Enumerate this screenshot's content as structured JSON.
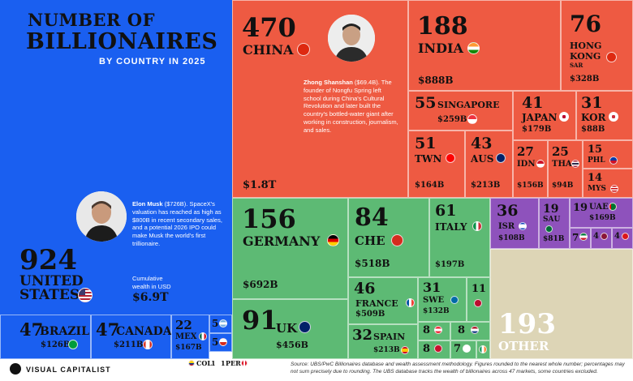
{
  "header": {
    "title_line1": "NUMBER OF",
    "title_line2": "BILLIONAIRES",
    "subtitle": "BY COUNTRY IN 2025"
  },
  "colors": {
    "us_blue": "#1a5ff0",
    "asia_red": "#ee5a42",
    "europe_green": "#5dba74",
    "mideast_purple": "#8e52bc",
    "other_beige": "#ddd5b6"
  },
  "chart_data": {
    "type": "treemap",
    "title": "Number of Billionaires by Country in 2025",
    "entries": [
      {
        "country": "United States",
        "count": 924,
        "wealth": "$6.9T",
        "wealth_label": "Cumulative wealth in USD"
      },
      {
        "country": "China",
        "count": 470,
        "wealth": "$1.8T"
      },
      {
        "country": "India",
        "count": 188,
        "wealth": "$888B"
      },
      {
        "country": "Hong Kong SAR",
        "count": 76,
        "wealth": "$328B"
      },
      {
        "country": "Singapore",
        "count": 55,
        "wealth": "$259B"
      },
      {
        "country": "Japan",
        "count": 41,
        "wealth": "$179B"
      },
      {
        "country": "Korea",
        "count": 31,
        "wealth": "$88B"
      },
      {
        "country": "Taiwan",
        "count": 51,
        "wealth": "$164B"
      },
      {
        "country": "Australia",
        "count": 43,
        "wealth": "$213B"
      },
      {
        "country": "Indonesia",
        "count": 27,
        "wealth": "$156B"
      },
      {
        "country": "Thailand",
        "count": 25,
        "wealth": "$94B"
      },
      {
        "country": "Philippines",
        "count": 15
      },
      {
        "country": "Malaysia",
        "count": 14
      },
      {
        "country": "Brazil",
        "count": 47,
        "wealth": "$126B"
      },
      {
        "country": "Canada",
        "count": 47,
        "wealth": "$211B"
      },
      {
        "country": "Mexico",
        "count": 22,
        "wealth": "$167B"
      },
      {
        "country": "Germany",
        "count": 156,
        "wealth": "$692B"
      },
      {
        "country": "Switzerland",
        "count": 84,
        "wealth": "$518B"
      },
      {
        "country": "Italy",
        "count": 61,
        "wealth": "$197B"
      },
      {
        "country": "UK",
        "count": 91,
        "wealth": "$456B"
      },
      {
        "country": "France",
        "count": 46,
        "wealth": "$509B"
      },
      {
        "country": "Sweden",
        "count": 31,
        "wealth": "$132B"
      },
      {
        "country": "Spain",
        "count": 32,
        "wealth": "$213B"
      },
      {
        "country": "Israel",
        "count": 36,
        "wealth": "$108B"
      },
      {
        "country": "Saudi Arabia",
        "count": 19,
        "wealth": "$81B"
      },
      {
        "country": "UAE",
        "count": 19,
        "wealth": "$169B"
      },
      {
        "country": "Other",
        "count": 193
      }
    ]
  },
  "tiles": {
    "us": {
      "num": "924",
      "name1": "UNITED",
      "name2": "STATES",
      "cap_label1": "Cumulative",
      "cap_label2": "wealth in USD",
      "wealth": "$6.9T"
    },
    "china": {
      "num": "470",
      "name": "CHINA",
      "wealth": "$1.8T"
    },
    "india": {
      "num": "188",
      "name": "INDIA",
      "wealth": "$888B"
    },
    "hk": {
      "num": "76",
      "name1": "HONG",
      "name2": "KONG",
      "name3": "SAR",
      "wealth": "$328B"
    },
    "sg": {
      "num": "55",
      "name": "SINGAPORE",
      "wealth": "$259B"
    },
    "jp": {
      "num": "41",
      "name": "JAPAN",
      "wealth": "$179B"
    },
    "kr": {
      "num": "31",
      "name": "KOR",
      "wealth": "$88B"
    },
    "tw": {
      "num": "51",
      "name": "TWN",
      "wealth": "$164B"
    },
    "au": {
      "num": "43",
      "name": "AUS",
      "wealth": "$213B"
    },
    "id": {
      "num": "27",
      "name": "IDN",
      "wealth": "$156B"
    },
    "th": {
      "num": "25",
      "name": "THA",
      "wealth": "$94B"
    },
    "ph": {
      "num": "15",
      "name": "PHL"
    },
    "my": {
      "num": "14",
      "name": "MYS"
    },
    "br": {
      "num": "47",
      "name": "BRAZIL",
      "wealth": "$126B"
    },
    "ca": {
      "num": "47",
      "name": "CANADA",
      "wealth": "$211B"
    },
    "mx": {
      "num": "22",
      "name": "MEX",
      "wealth": "$167B"
    },
    "s5a": {
      "num": "5"
    },
    "s5b": {
      "num": "5"
    },
    "col": {
      "num": "1",
      "name": "COL"
    },
    "per": {
      "num": "1",
      "name": "PER"
    },
    "de": {
      "num": "156",
      "name": "GERMANY",
      "wealth": "$692B"
    },
    "ch": {
      "num": "84",
      "name": "CHE",
      "wealth": "$518B"
    },
    "it": {
      "num": "61",
      "name": "ITALY",
      "wealth": "$197B"
    },
    "uk": {
      "num": "91",
      "name": "UK",
      "wealth": "$456B"
    },
    "fr": {
      "num": "46",
      "name": "FRANCE",
      "wealth": "$509B"
    },
    "se": {
      "num": "31",
      "name": "SWE",
      "wealth": "$132B"
    },
    "es": {
      "num": "32",
      "name": "SPAIN",
      "wealth": "$213B"
    },
    "s11": {
      "num": "11"
    },
    "s8a": {
      "num": "8"
    },
    "s8b": {
      "num": "8"
    },
    "s8c": {
      "num": "8"
    },
    "s7a": {
      "num": "7"
    },
    "il": {
      "num": "36",
      "name": "ISR",
      "wealth": "$108B"
    },
    "sa": {
      "num": "19",
      "name": "SAU",
      "wealth": "$81B"
    },
    "ae": {
      "num": "19",
      "name": "UAE",
      "wealth": "$169B"
    },
    "s7b": {
      "num": "7"
    },
    "s4a": {
      "num": "4"
    },
    "s4b": {
      "num": "4"
    },
    "other": {
      "num": "193",
      "name": "OTHER"
    }
  },
  "people": {
    "musk": {
      "name": "Elon Musk",
      "worth": " ($726B).",
      "bio": "SpaceX's valuation has reached as high as $800B in recent secondary sales, and a potential 2026 IPO could make Musk the world's first trillionaire."
    },
    "zhong": {
      "name": "Zhong Shanshan",
      "worth": " ($69.4B).",
      "bio": "The founder of Nongfu Spring left school during China's Cultural Revolution and later built the country's bottled-water giant after working in construction, journalism, and sales."
    }
  },
  "footer": {
    "brand": "VISUAL CAPITALIST",
    "source": "Source: UBS/PwC Billionaires database and wealth assessment methodology. Figures rounded to the nearest whole number; percentages may not sum precisely due to rounding. The UBS database tracks the wealth of billionaires across 47 markets, some countries excluded."
  },
  "flags": {
    "china": "#de2910",
    "india": "#ff9933",
    "hk": "#de2910",
    "sg": "#ef3340",
    "jp": "#ffffff",
    "kr": "#ffffff",
    "tw": "#fe0000",
    "au": "#012169",
    "id": "#ce1126",
    "th": "#2d2a4a",
    "ph": "#0038a8",
    "my": "#010066",
    "us": "#3c3b6e",
    "br": "#009c3b",
    "ca": "#d52b1e",
    "mx": "#006847",
    "de": "#000000",
    "ch": "#d52b1e",
    "it": "#009246",
    "uk": "#012169",
    "fr": "#0055a4",
    "se": "#006aa7",
    "es": "#c60b1e",
    "il": "#ffffff",
    "sa": "#006c35",
    "ae": "#00732f"
  }
}
